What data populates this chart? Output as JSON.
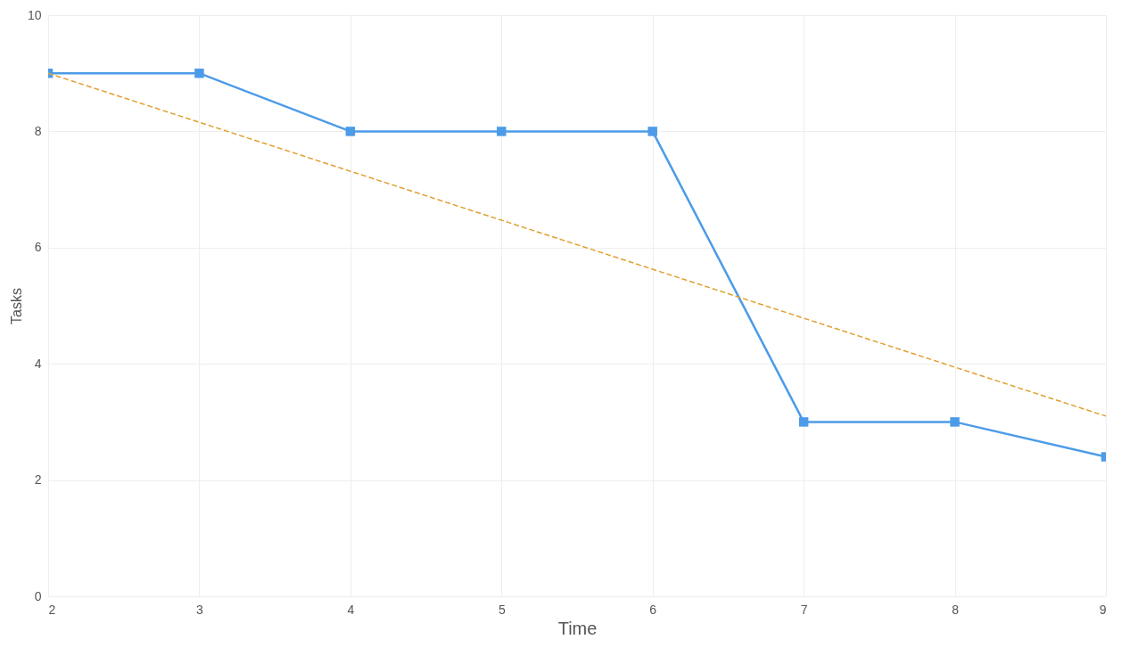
{
  "chart_data": {
    "type": "line",
    "xlabel": "Time",
    "ylabel": "Tasks",
    "xlim": [
      2,
      9
    ],
    "xticks": [
      2,
      3,
      4,
      5,
      6,
      7,
      8,
      9
    ],
    "ylim": [
      0,
      10
    ],
    "yticks": [
      0,
      2,
      4,
      6,
      8,
      10
    ],
    "grid": true,
    "series": [
      {
        "color": "#4c9be8",
        "marker": "square",
        "line_style": "solid",
        "x": [
          2,
          3,
          4,
          5,
          6,
          7,
          8,
          9
        ],
        "values": [
          9,
          9,
          8,
          8,
          8,
          3,
          3,
          2.4
        ]
      },
      {
        "color": "#e0a030",
        "marker": "none",
        "line_style": "dashed",
        "x": [
          2,
          9
        ],
        "values": [
          9,
          3.1
        ]
      }
    ]
  }
}
